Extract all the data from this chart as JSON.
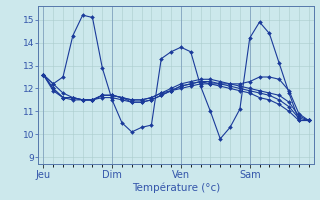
{
  "background_color": "#cce8ec",
  "grid_color": "#aacccc",
  "line_color": "#1a3a9a",
  "title": "Température (°c)",
  "x_tick_labels": [
    "Jeu",
    "Dim",
    "Ven",
    "Sam"
  ],
  "x_tick_positions": [
    0,
    7,
    14,
    21
  ],
  "ylim_bottom": 8.7,
  "ylim_top": 15.6,
  "yticks": [
    9,
    10,
    11,
    12,
    13,
    14,
    15
  ],
  "n_points": 28,
  "series": [
    [
      12.6,
      12.2,
      12.5,
      14.3,
      15.2,
      15.1,
      12.9,
      11.5,
      10.5,
      10.1,
      10.3,
      10.4,
      13.3,
      13.6,
      13.8,
      13.6,
      12.1,
      11.0,
      9.8,
      10.3,
      11.1,
      14.2,
      14.9,
      14.4,
      13.1,
      11.8,
      10.6,
      10.6
    ],
    [
      12.6,
      12.2,
      11.8,
      11.6,
      11.5,
      11.5,
      11.7,
      11.7,
      11.6,
      11.5,
      11.5,
      11.6,
      11.8,
      11.9,
      12.0,
      12.1,
      12.2,
      12.2,
      12.2,
      12.2,
      12.2,
      12.3,
      12.5,
      12.5,
      12.4,
      11.9,
      10.9,
      10.6
    ],
    [
      12.6,
      12.0,
      11.6,
      11.6,
      11.5,
      11.5,
      11.7,
      11.7,
      11.6,
      11.5,
      11.5,
      11.6,
      11.8,
      12.0,
      12.2,
      12.3,
      12.4,
      12.4,
      12.3,
      12.2,
      12.1,
      12.0,
      11.9,
      11.8,
      11.7,
      11.4,
      10.8,
      10.6
    ],
    [
      12.6,
      12.0,
      11.6,
      11.6,
      11.5,
      11.5,
      11.7,
      11.7,
      11.6,
      11.4,
      11.4,
      11.5,
      11.7,
      11.9,
      12.1,
      12.2,
      12.3,
      12.3,
      12.2,
      12.1,
      12.0,
      11.9,
      11.8,
      11.7,
      11.5,
      11.2,
      10.7,
      10.6
    ],
    [
      12.6,
      11.9,
      11.6,
      11.5,
      11.5,
      11.5,
      11.6,
      11.6,
      11.5,
      11.4,
      11.4,
      11.5,
      11.7,
      11.9,
      12.1,
      12.2,
      12.3,
      12.2,
      12.1,
      12.0,
      11.9,
      11.8,
      11.6,
      11.5,
      11.3,
      11.0,
      10.6,
      10.6
    ]
  ]
}
